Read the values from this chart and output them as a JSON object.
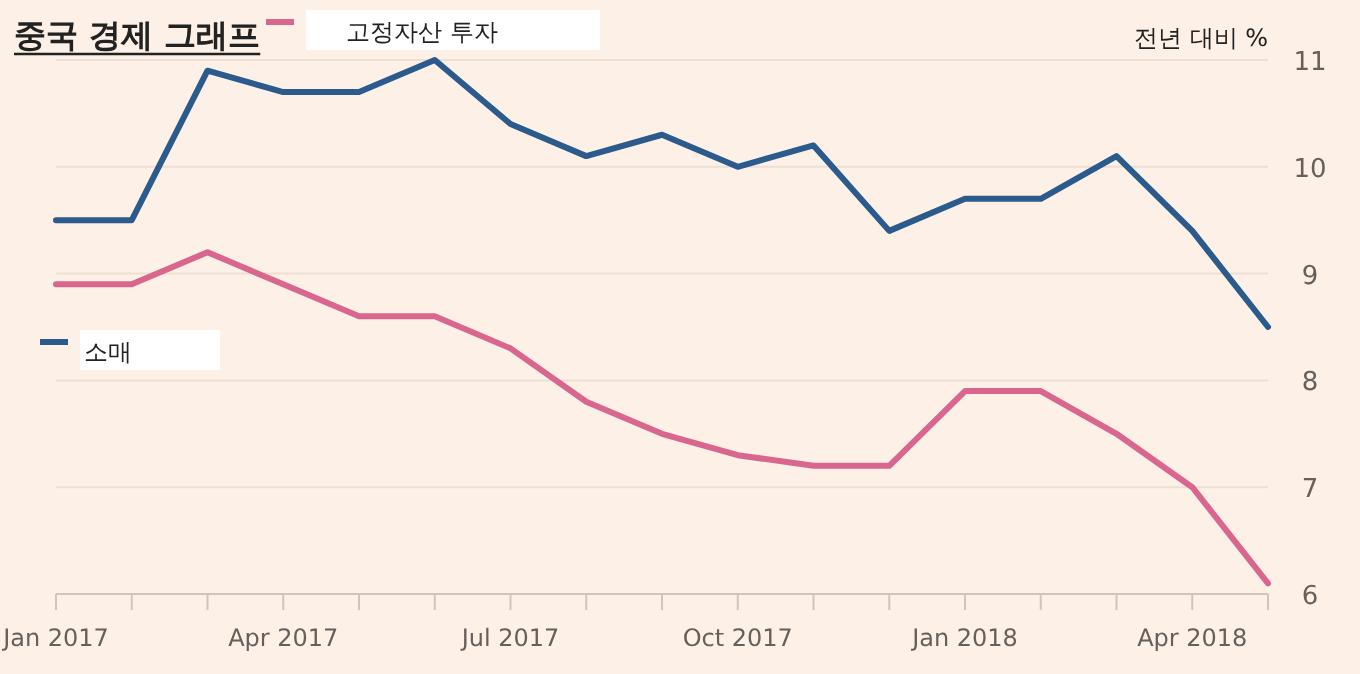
{
  "chart_data": {
    "type": "line",
    "title": "중국 경제 그래프",
    "ylabel": "전년 대비 %",
    "x": [
      "2017-01",
      "2017-02",
      "2017-03",
      "2017-04",
      "2017-05",
      "2017-06",
      "2017-07",
      "2017-08",
      "2017-09",
      "2017-10",
      "2017-11",
      "2017-12",
      "2018-01",
      "2018-02",
      "2018-03",
      "2018-04",
      "2018-05"
    ],
    "series": [
      {
        "name": "소매",
        "color": "#2b5a8c",
        "values": [
          9.5,
          9.5,
          10.9,
          10.7,
          10.7,
          11.0,
          10.4,
          10.1,
          10.3,
          10.0,
          10.2,
          9.4,
          9.7,
          9.7,
          10.1,
          9.4,
          8.5
        ]
      },
      {
        "name": "고정자산 투자",
        "color": "#d9668f",
        "values": [
          8.9,
          8.9,
          9.2,
          8.9,
          8.6,
          8.6,
          8.3,
          7.8,
          7.5,
          7.3,
          7.2,
          7.2,
          7.9,
          7.9,
          7.5,
          7.0,
          6.1
        ]
      }
    ],
    "xlim": [
      "2017-01",
      "2018-05"
    ],
    "xticks": [
      {
        "value": "2017-01",
        "label": "Jan 2017"
      },
      {
        "value": "2017-02",
        "label": null
      },
      {
        "value": "2017-03",
        "label": null
      },
      {
        "value": "2017-04",
        "label": "Apr 2017"
      },
      {
        "value": "2017-05",
        "label": null
      },
      {
        "value": "2017-06",
        "label": null
      },
      {
        "value": "2017-07",
        "label": "Jul 2017"
      },
      {
        "value": "2017-08",
        "label": null
      },
      {
        "value": "2017-09",
        "label": null
      },
      {
        "value": "2017-10",
        "label": "Oct 2017"
      },
      {
        "value": "2017-11",
        "label": null
      },
      {
        "value": "2017-12",
        "label": null
      },
      {
        "value": "2018-01",
        "label": "Jan 2018"
      },
      {
        "value": "2018-02",
        "label": null
      },
      {
        "value": "2018-03",
        "label": null
      },
      {
        "value": "2018-04",
        "label": "Apr 2018"
      },
      {
        "value": "2018-05",
        "label": null
      }
    ],
    "ylim": [
      6,
      11
    ],
    "yticks": [
      6,
      7,
      8,
      9,
      10,
      11
    ],
    "grid": "y",
    "legend": "top left",
    "line_style": "solid",
    "marker": "none"
  }
}
